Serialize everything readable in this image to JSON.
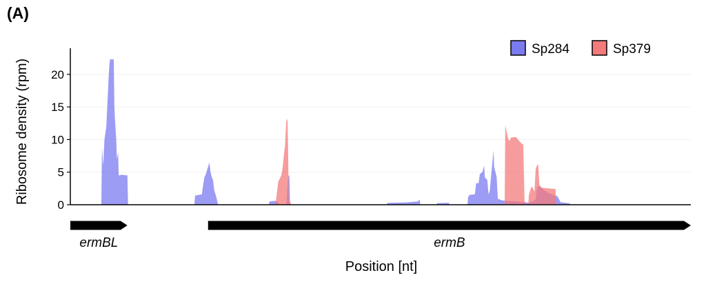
{
  "panel_label": "(A)",
  "chart_data": {
    "type": "area",
    "ylabel": "Ribosome density (rpm)",
    "xlabel": "Position [nt]",
    "ylim": [
      0,
      24
    ],
    "yticks": [
      "0",
      "5",
      "10",
      "15",
      "20"
    ],
    "ytick_values": [
      0,
      5,
      10,
      15,
      20
    ],
    "xlim": [
      0,
      1000
    ],
    "legend_position": "top-right",
    "series": [
      {
        "name": "Sp284",
        "color": "#7b7bf0",
        "points": [
          [
            0,
            0
          ],
          [
            50,
            0
          ],
          [
            51,
            8.8
          ],
          [
            53,
            6
          ],
          [
            55,
            10
          ],
          [
            58,
            12
          ],
          [
            60,
            16
          ],
          [
            62,
            20
          ],
          [
            63,
            21.5
          ],
          [
            64,
            22.3
          ],
          [
            70,
            22.3
          ],
          [
            71,
            15
          ],
          [
            72,
            13
          ],
          [
            74,
            10
          ],
          [
            75,
            7
          ],
          [
            77,
            8
          ],
          [
            78,
            4.5
          ],
          [
            80,
            4.5
          ],
          [
            81,
            4.6
          ],
          [
            92,
            4.5
          ],
          [
            93,
            0
          ],
          [
            200,
            0
          ],
          [
            201,
            1.4
          ],
          [
            212,
            1.6
          ],
          [
            214,
            3
          ],
          [
            216,
            4.2
          ],
          [
            218,
            4.6
          ],
          [
            220,
            5.2
          ],
          [
            222,
            5.8
          ],
          [
            224,
            6.5
          ],
          [
            226,
            5
          ],
          [
            228,
            4.2
          ],
          [
            230,
            3.8
          ],
          [
            232,
            2.2
          ],
          [
            234,
            1.6
          ],
          [
            236,
            0.9
          ],
          [
            238,
            0
          ],
          [
            320,
            0
          ],
          [
            321,
            0.5
          ],
          [
            330,
            0.6
          ],
          [
            335,
            0.4
          ],
          [
            336,
            0
          ],
          [
            348,
            0
          ],
          [
            349,
            1.5
          ],
          [
            351,
            4.2
          ],
          [
            353,
            4.6
          ],
          [
            354,
            0
          ],
          [
            510,
            0
          ],
          [
            511,
            0.3
          ],
          [
            540,
            0.35
          ],
          [
            560,
            0.5
          ],
          [
            563,
            0.8
          ],
          [
            564,
            0
          ],
          [
            590,
            0
          ],
          [
            591,
            0.25
          ],
          [
            610,
            0.3
          ],
          [
            611,
            0
          ],
          [
            640,
            0
          ],
          [
            641,
            1.1
          ],
          [
            643,
            1.5
          ],
          [
            652,
            1.6
          ],
          [
            654,
            3.3
          ],
          [
            658,
            3.3
          ],
          [
            660,
            4.7
          ],
          [
            664,
            5.0
          ],
          [
            667,
            6.0
          ],
          [
            668,
            4.2
          ],
          [
            672,
            3.8
          ],
          [
            674,
            1.6
          ],
          [
            676,
            2.1
          ],
          [
            678,
            4.3
          ],
          [
            681,
            7.3
          ],
          [
            682,
            8.4
          ],
          [
            683,
            5.8
          ],
          [
            687,
            4.3
          ],
          [
            689,
            0.9
          ],
          [
            695,
            0.7
          ],
          [
            700,
            0.6
          ],
          [
            720,
            0.5
          ],
          [
            730,
            0.4
          ],
          [
            740,
            0.3
          ],
          [
            750,
            0.8
          ],
          [
            752,
            2.6
          ],
          [
            755,
            2.9
          ],
          [
            770,
            1.8
          ],
          [
            785,
            1.3
          ],
          [
            790,
            0.4
          ],
          [
            805,
            0.2
          ],
          [
            806,
            0
          ]
        ]
      },
      {
        "name": "Sp379",
        "color": "#f47b7b",
        "points": [
          [
            0,
            0
          ],
          [
            330,
            0
          ],
          [
            331,
            0.3
          ],
          [
            335,
            3.5
          ],
          [
            340,
            4.5
          ],
          [
            342,
            5.5
          ],
          [
            344,
            7.5
          ],
          [
            346,
            9
          ],
          [
            348,
            12.8
          ],
          [
            350,
            13.2
          ],
          [
            351,
            8
          ],
          [
            352,
            0.8
          ],
          [
            354,
            0.5
          ],
          [
            356,
            0
          ],
          [
            700,
            0
          ],
          [
            701,
            12.2
          ],
          [
            704,
            10.8
          ],
          [
            706,
            10.0
          ],
          [
            708,
            9.8
          ],
          [
            710,
            10.3
          ],
          [
            718,
            10.4
          ],
          [
            726,
            9.5
          ],
          [
            730,
            9.2
          ],
          [
            732,
            0.6
          ],
          [
            734,
            0
          ],
          [
            738,
            0
          ],
          [
            739,
            1.5
          ],
          [
            742,
            2.5
          ],
          [
            744,
            2.8
          ],
          [
            748,
            2.0
          ],
          [
            750,
            5.5
          ],
          [
            752,
            6.0
          ],
          [
            754,
            6.2
          ],
          [
            756,
            3.0
          ],
          [
            758,
            2.8
          ],
          [
            760,
            2.6
          ],
          [
            782,
            2.4
          ],
          [
            783,
            0
          ]
        ]
      }
    ],
    "genes": [
      {
        "name": "ermBL",
        "start": 0,
        "end": 92
      },
      {
        "name": "ermB",
        "start": 222,
        "end": 1000
      }
    ]
  }
}
